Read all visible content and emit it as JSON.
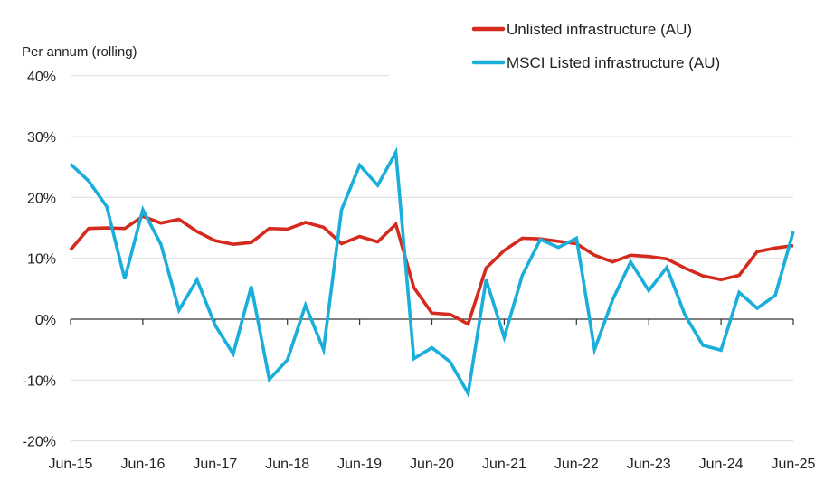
{
  "chart_data": {
    "type": "line",
    "title": "",
    "ylabel": "Per annum (rolling)",
    "xlabel": "",
    "ylim": [
      -20,
      40
    ],
    "y_ticks": [
      -20,
      -10,
      0,
      10,
      20,
      30,
      40
    ],
    "y_tick_labels": [
      "-20%",
      "-10%",
      "0%",
      "10%",
      "20%",
      "30%",
      "40%"
    ],
    "x_tick_labels": [
      "Jun-15",
      "Jun-16",
      "Jun-17",
      "Jun-18",
      "Jun-19",
      "Jun-20",
      "Jun-21",
      "Jun-22",
      "Jun-23",
      "Jun-24",
      "Jun-25"
    ],
    "x_frequency": "quarterly",
    "grid": true,
    "legend_placement": "top-right",
    "series": [
      {
        "name": "Unlisted infrastructure (AU)",
        "color": "#d52b1e",
        "values": [
          11.4,
          14.9,
          15.0,
          14.9,
          16.9,
          15.8,
          16.4,
          14.4,
          12.9,
          12.3,
          12.6,
          14.9,
          14.8,
          15.9,
          15.1,
          12.4,
          13.6,
          12.7,
          15.6,
          5.2,
          1.0,
          0.8,
          -0.8,
          8.4,
          11.3,
          13.3,
          13.2,
          12.8,
          12.4,
          10.5,
          9.4,
          10.5,
          10.3,
          9.9,
          8.4,
          7.1,
          6.5,
          7.2,
          11.1,
          11.7,
          12.1
        ]
      },
      {
        "name": "MSCI Listed infrastructure (AU)",
        "color": "#1aaedb",
        "values": [
          25.5,
          22.7,
          18.5,
          6.6,
          18.0,
          12.3,
          1.5,
          6.5,
          -1.0,
          -5.7,
          5.4,
          -9.9,
          -6.7,
          2.3,
          -5.0,
          18.0,
          25.3,
          22.0,
          27.4,
          -6.5,
          -4.7,
          -7.0,
          -12.2,
          6.5,
          -3.0,
          7.2,
          13.1,
          11.8,
          13.3,
          -5.0,
          3.2,
          9.4,
          4.7,
          8.5,
          0.7,
          -4.3,
          -5.1,
          4.4,
          1.8,
          3.9,
          14.4
        ]
      }
    ]
  }
}
